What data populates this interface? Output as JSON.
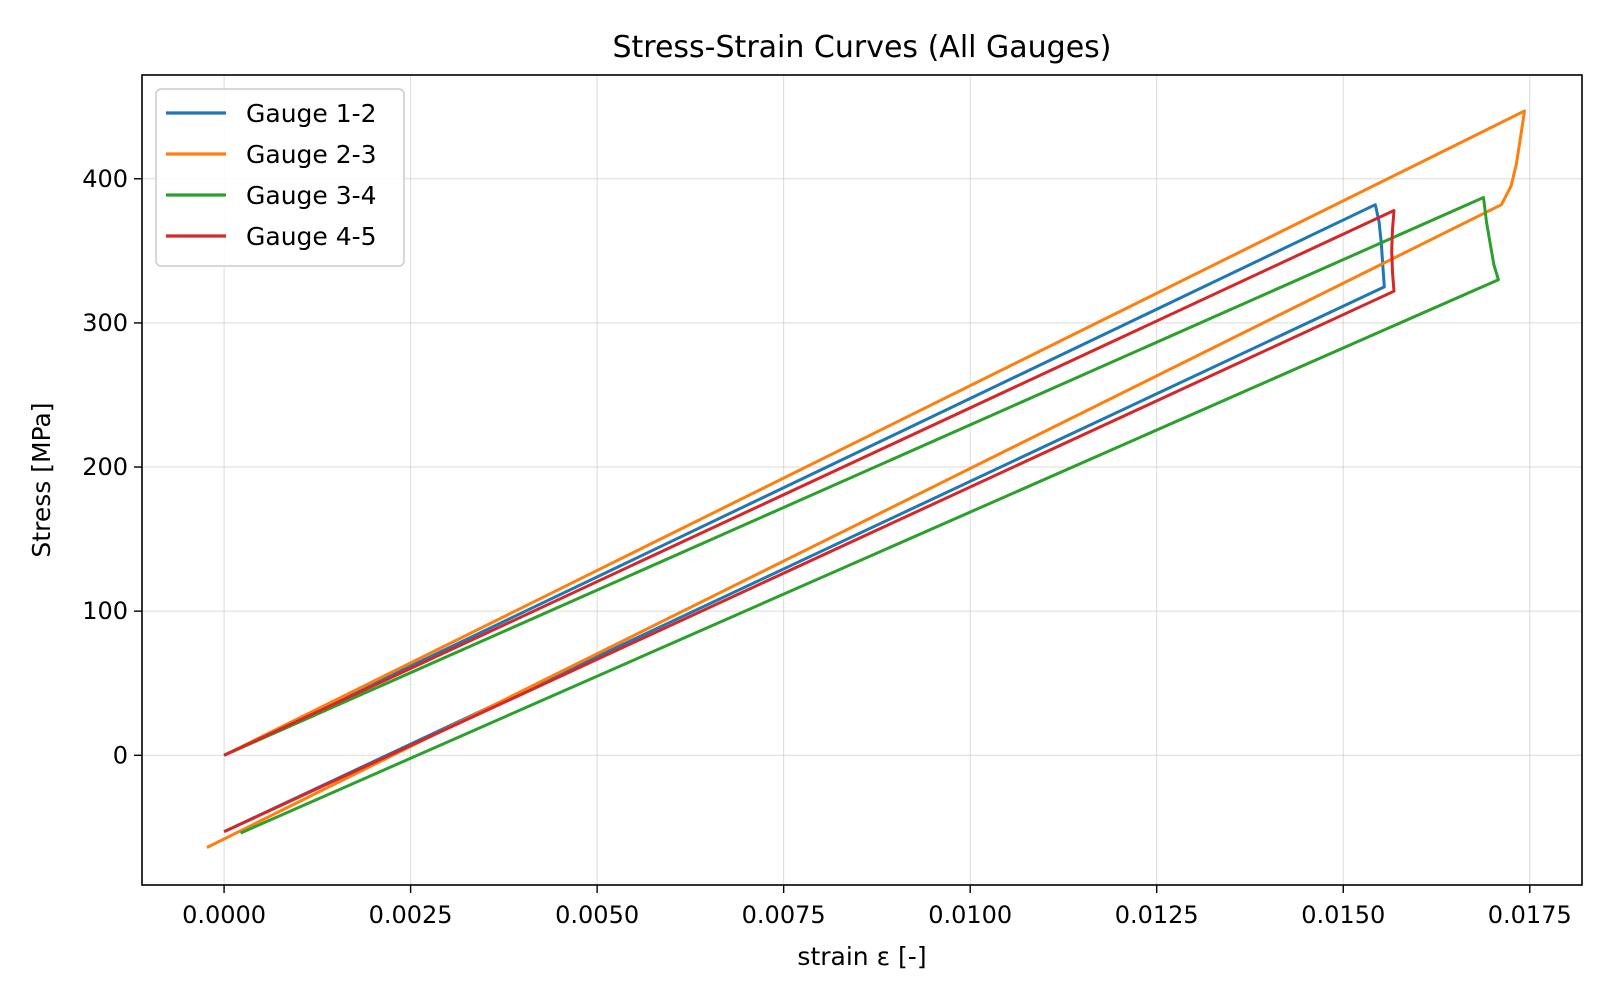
{
  "chart_data": {
    "type": "line",
    "title": "Stress-Strain Curves (All Gauges)",
    "xlabel": "strain  ε [-]",
    "ylabel": "Stress [MPa]",
    "xlim": [
      -0.0011,
      0.0182
    ],
    "ylim": [
      -90,
      472
    ],
    "xticks": [
      0.0,
      0.0025,
      0.005,
      0.0075,
      0.01,
      0.0125,
      0.015,
      0.0175
    ],
    "xtick_labels": [
      "0.0000",
      "0.0025",
      "0.0050",
      "0.0075",
      "0.0100",
      "0.0125",
      "0.0150",
      "0.0175"
    ],
    "yticks": [
      0,
      100,
      200,
      300,
      400
    ],
    "ytick_labels": [
      "0",
      "100",
      "200",
      "300",
      "400"
    ],
    "grid": true,
    "legend_position": "top-left",
    "series": [
      {
        "name": "Gauge 1-2",
        "color": "#1f77b4",
        "points": [
          [
            0.0,
            0
          ],
          [
            0.01543,
            382
          ],
          [
            0.01548,
            370
          ],
          [
            0.01551,
            355
          ],
          [
            0.01553,
            340
          ],
          [
            0.01555,
            325
          ],
          [
            0.0,
            -53
          ]
        ]
      },
      {
        "name": "Gauge 2-3",
        "color": "#ff7f0e",
        "points": [
          [
            0.0,
            0
          ],
          [
            0.01743,
            447
          ],
          [
            0.01738,
            430
          ],
          [
            0.01732,
            410
          ],
          [
            0.01725,
            395
          ],
          [
            0.01712,
            382
          ],
          [
            -0.00023,
            -64
          ]
        ]
      },
      {
        "name": "Gauge 3-4",
        "color": "#2ca02c",
        "points": [
          [
            0.0,
            0
          ],
          [
            0.01688,
            387
          ],
          [
            0.01692,
            370
          ],
          [
            0.01697,
            355
          ],
          [
            0.01702,
            340
          ],
          [
            0.01708,
            330
          ],
          [
            0.00022,
            -54
          ]
        ]
      },
      {
        "name": "Gauge 4-5",
        "color": "#d62728",
        "points": [
          [
            0.0,
            0
          ],
          [
            0.01568,
            378
          ],
          [
            0.01566,
            365
          ],
          [
            0.01565,
            350
          ],
          [
            0.01566,
            335
          ],
          [
            0.01568,
            322
          ],
          [
            0.0,
            -53
          ]
        ]
      }
    ]
  }
}
